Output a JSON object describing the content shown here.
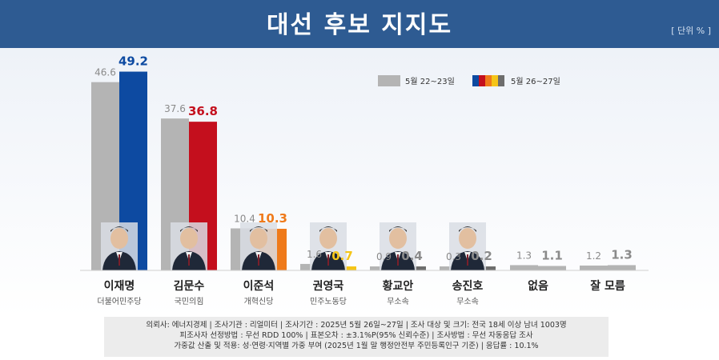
{
  "header": {
    "title": "대선 후보 지지도",
    "unit": "[ 단위 % ]"
  },
  "colors": {
    "header_bg": "#2e5b92",
    "prev": "#b4b4b4"
  },
  "chart_data": {
    "type": "bar",
    "legend": {
      "position": "top-right",
      "prev_label": "5월 22~23일",
      "curr_label": "5월 26~27일"
    },
    "categories": [
      {
        "name": "이재명",
        "party": "더불어민주당",
        "color": "#0d4aa1",
        "label_color": "#0d4aa1",
        "photo": true
      },
      {
        "name": "김문수",
        "party": "국민의힘",
        "color": "#c40f1d",
        "label_color": "#c40f1d",
        "photo": true
      },
      {
        "name": "이준석",
        "party": "개혁신당",
        "color": "#ef7a1a",
        "label_color": "#ef7a1a",
        "photo": true
      },
      {
        "name": "권영국",
        "party": "민주노동당",
        "color": "#f5c518",
        "label_color": "#f5c518",
        "photo": true
      },
      {
        "name": "황교안",
        "party": "무소속",
        "color": "#6d6d6d",
        "label_color": "#8a8a8a",
        "photo": true
      },
      {
        "name": "송진호",
        "party": "무소속",
        "color": "#6d6d6d",
        "label_color": "#8a8a8a",
        "photo": true
      },
      {
        "name": "없음",
        "party": "",
        "color": "#b4b4b4",
        "label_color": "#8a8a8a",
        "photo": false
      },
      {
        "name": "잘 모름",
        "party": "",
        "color": "#b4b4b4",
        "label_color": "#8a8a8a",
        "photo": false
      }
    ],
    "series": [
      {
        "name": "5월 22~23일",
        "values": [
          46.6,
          37.6,
          10.4,
          1.6,
          0.9,
          0.3,
          1.3,
          1.2
        ]
      },
      {
        "name": "5월 26~27일",
        "values": [
          49.2,
          36.8,
          10.3,
          0.7,
          0.4,
          0.2,
          1.1,
          1.3
        ]
      }
    ],
    "ylim": [
      0,
      55
    ]
  },
  "footer": {
    "line1": "의뢰사: 에너지경제 | 조사기관 : 리얼미터  |  조사기간 : 2025년 5월 26일~27일 | 조사 대상 및 크기: 전국 18세 이상 남녀 1003명",
    "line2": "피조사자 선정방법 : 무선 RDD 100% | 표본오차 : ±3.1%P(95% 신뢰수준) | 조사방법 : 무선 자동응답 조사",
    "line3": "가중값 산출 및 적용: 성·연령·지역별 가중 부여 (2025년 1월 말 행정안전부 주민등록인구 기준) | 응답률 : 10.1%"
  }
}
